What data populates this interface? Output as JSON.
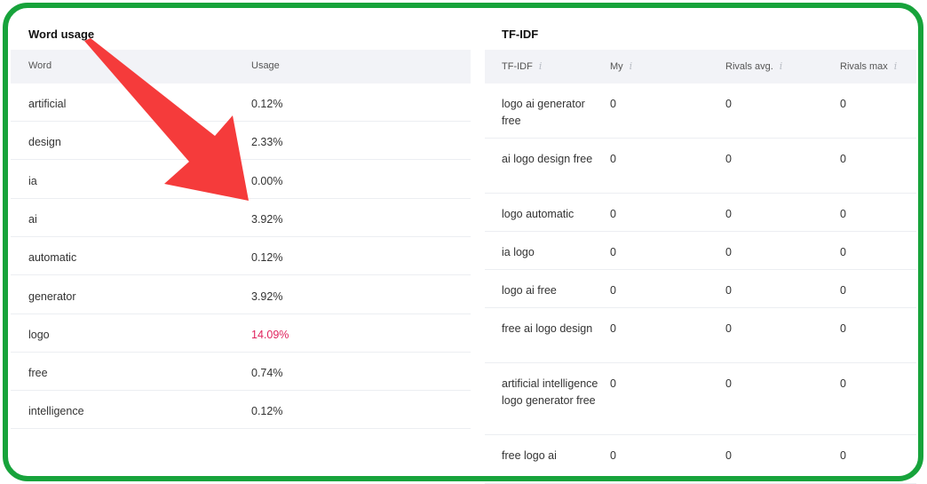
{
  "word_usage": {
    "title": "Word usage",
    "headers": [
      "Word",
      "Usage"
    ],
    "rows": [
      [
        "artificial",
        "0.12%"
      ],
      [
        "design",
        "2.33%"
      ],
      [
        "ia",
        "0.00%"
      ],
      [
        "ai",
        "3.92%"
      ],
      [
        "automatic",
        "0.12%"
      ],
      [
        "generator",
        "3.92%"
      ],
      [
        "logo",
        "14.09%"
      ],
      [
        "free",
        "0.74%"
      ],
      [
        "intelligence",
        "0.12%"
      ]
    ],
    "highlight_row": "logo",
    "highlight_color": "#e0245e"
  },
  "tfidf": {
    "title": "TF-IDF",
    "headers": [
      "TF-IDF",
      "My",
      "Rivals avg.",
      "Rivals max"
    ],
    "rows": [
      [
        "logo ai generator free",
        "0",
        "0",
        "0"
      ],
      [
        "ai logo design free",
        "0",
        "0",
        "0"
      ],
      [
        "logo automatic",
        "0",
        "0",
        "0"
      ],
      [
        "ia logo",
        "0",
        "0",
        "0"
      ],
      [
        "logo ai free",
        "0",
        "0",
        "0"
      ],
      [
        "free ai logo design",
        "0",
        "0",
        "0"
      ],
      [
        "artificial intelligence logo generator free",
        "0",
        "0",
        "0"
      ],
      [
        "free logo ai",
        "0",
        "0",
        "0"
      ]
    ]
  },
  "annotation": {
    "frame_color": "#17a33b",
    "arrow_color": "#f53b3b"
  }
}
